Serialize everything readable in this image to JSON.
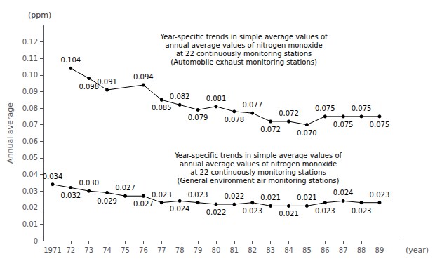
{
  "chart_data": {
    "type": "line",
    "xlabel": "(year)",
    "ylabel": "Annual average",
    "annotations": [
      "(ppm)",
      "Year-specific trends in simple average values of\nannual average values of nitrogen monoxide\nat 22 continuously monitoring stations\n(Automobile exhaust monitoring stations)",
      "Year-specific trends in simple average values of\nannual average values of nitrogen monoxide\nat 22 continuously monitoring stations\n(General environment air monitoring stations)"
    ],
    "x": [
      1971,
      1972,
      1973,
      1974,
      1975,
      1976,
      1977,
      1978,
      1979,
      1980,
      1981,
      1982,
      1983,
      1984,
      1985,
      1986,
      1987,
      1988,
      1989
    ],
    "xlim": [
      1970.5,
      1990.2
    ],
    "xticks": [
      1971,
      {
        "value": 1972,
        "label": "72"
      },
      {
        "value": 1973,
        "label": "73"
      },
      {
        "value": 1974,
        "label": "74"
      },
      {
        "value": 1975,
        "label": "75"
      },
      {
        "value": 1976,
        "label": "76"
      },
      {
        "value": 1977,
        "label": "77"
      },
      {
        "value": 1978,
        "label": "78"
      },
      {
        "value": 1979,
        "label": "79"
      },
      {
        "value": 1980,
        "label": "80"
      },
      {
        "value": 1981,
        "label": "81"
      },
      {
        "value": 1982,
        "label": "82"
      },
      {
        "value": 1983,
        "label": "83"
      },
      {
        "value": 1984,
        "label": "84"
      },
      {
        "value": 1985,
        "label": "85"
      },
      {
        "value": 1986,
        "label": "86"
      },
      {
        "value": 1987,
        "label": "87"
      },
      {
        "value": 1988,
        "label": "88"
      },
      {
        "value": 1989,
        "label": "89"
      }
    ],
    "ylim": [
      0,
      0.13
    ],
    "yticks": [
      0,
      0.01,
      0.02,
      0.03,
      0.04,
      0.05,
      0.06,
      0.07,
      0.08,
      0.09,
      {
        "value": 0.1,
        "label": "0.10"
      },
      0.11,
      0.12
    ],
    "grid": false,
    "data_labels": true,
    "series": [
      {
        "color": "#000000",
        "marker": "circle",
        "values": [
          null,
          0.104,
          0.098,
          0.091,
          null,
          0.094,
          0.085,
          0.082,
          0.079,
          0.081,
          0.078,
          0.077,
          0.072,
          0.072,
          0.07,
          0.075,
          0.075,
          0.075,
          0.075
        ],
        "value_labels": [
          null,
          "0.104",
          "0.098",
          "0.091",
          null,
          "0.094",
          "0.085",
          "0.082",
          "0.079",
          "0.081",
          "0.078",
          "0.077",
          "0.072",
          "0.072",
          "0.070",
          "0.075",
          "0.075",
          "0.075",
          "0.075"
        ]
      },
      {
        "color": "#000000",
        "marker": "circle",
        "values": [
          0.034,
          0.032,
          0.03,
          0.029,
          0.027,
          0.027,
          0.023,
          0.024,
          0.023,
          0.022,
          0.022,
          0.023,
          0.021,
          0.021,
          0.021,
          0.023,
          0.024,
          0.023,
          0.023
        ],
        "value_labels": [
          "0.034",
          "0.032",
          "0.030",
          "0.029",
          "0.027",
          "0.027",
          "0.023",
          "0.024",
          "0.023",
          "0.022",
          "0.022",
          "0.023",
          "0.021",
          "0.021",
          "0.021",
          "0.023",
          "0.024",
          "0.023",
          "0.023"
        ]
      }
    ]
  }
}
